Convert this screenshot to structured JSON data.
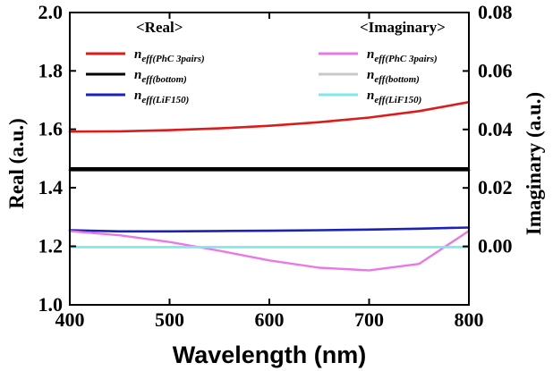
{
  "chart_data": {
    "type": "line",
    "x": [
      400,
      450,
      500,
      550,
      600,
      650,
      700,
      750,
      800
    ],
    "xlabel": "Wavelength (nm)",
    "xlim": [
      400,
      800
    ],
    "xticks": [
      "400",
      "500",
      "600",
      "700",
      "800"
    ],
    "left_axis": {
      "label": "Real (a.u.)",
      "lower_ylim": [
        1.0,
        1.467
      ],
      "lower_ticks": [
        "1.0",
        "1.2",
        "1.4"
      ],
      "upper_ylim": [
        1.467,
        2.0
      ],
      "upper_ticks": [
        "1.6",
        "1.8",
        "2.0"
      ]
    },
    "right_axis": {
      "label": "Imaginary (a.u.)",
      "ylim": [
        -0.02,
        0.08
      ],
      "ticks": [
        "0.00",
        "0.02",
        "0.04",
        "0.06",
        "0.08"
      ]
    },
    "legend": {
      "real_header": "<Real>",
      "imag_header": "<Imaginary>",
      "entries": [
        {
          "base": "n",
          "sub": "eff(PhC 3pairs)"
        },
        {
          "base": "n",
          "sub": "eff(bottom)"
        },
        {
          "base": "n",
          "sub": "eff(LiF150)"
        }
      ]
    },
    "series": [
      {
        "name": "n_eff(PhC 3pairs) real",
        "axis": "real",
        "color": "#dd1b1b",
        "values": [
          1.592,
          1.593,
          1.597,
          1.603,
          1.612,
          1.624,
          1.64,
          1.662,
          1.693
        ]
      },
      {
        "name": "n_eff(bottom) real",
        "axis": "real",
        "color": "#000000",
        "values": [
          1.46,
          1.46,
          1.46,
          1.46,
          1.46,
          1.46,
          1.46,
          1.46,
          1.46
        ]
      },
      {
        "name": "n_eff(LiF150) real",
        "axis": "real",
        "color": "#1a22b8",
        "values": [
          1.255,
          1.251,
          1.251,
          1.252,
          1.253,
          1.255,
          1.257,
          1.26,
          1.264
        ]
      },
      {
        "name": "n_eff(PhC 3pairs) imaginary",
        "axis": "imag",
        "color": "#e878e8",
        "values": [
          0.0052,
          0.0038,
          0.0015,
          -0.0015,
          -0.0048,
          -0.0073,
          -0.0082,
          -0.006,
          0.0053
        ]
      },
      {
        "name": "n_eff(bottom) imaginary",
        "axis": "imag",
        "color": "#c8c8c8",
        "values": [
          -0.0002,
          -0.0002,
          -0.0002,
          -0.0002,
          -0.0002,
          -0.0002,
          -0.0002,
          -0.0002,
          -0.0002
        ]
      },
      {
        "name": "n_eff(LiF150) imaginary",
        "axis": "imag",
        "color": "#7fe8e8",
        "values": [
          -0.0003,
          -0.0003,
          -0.0003,
          -0.0003,
          -0.0003,
          -0.0003,
          -0.0003,
          -0.0003,
          -0.0003
        ]
      }
    ]
  }
}
